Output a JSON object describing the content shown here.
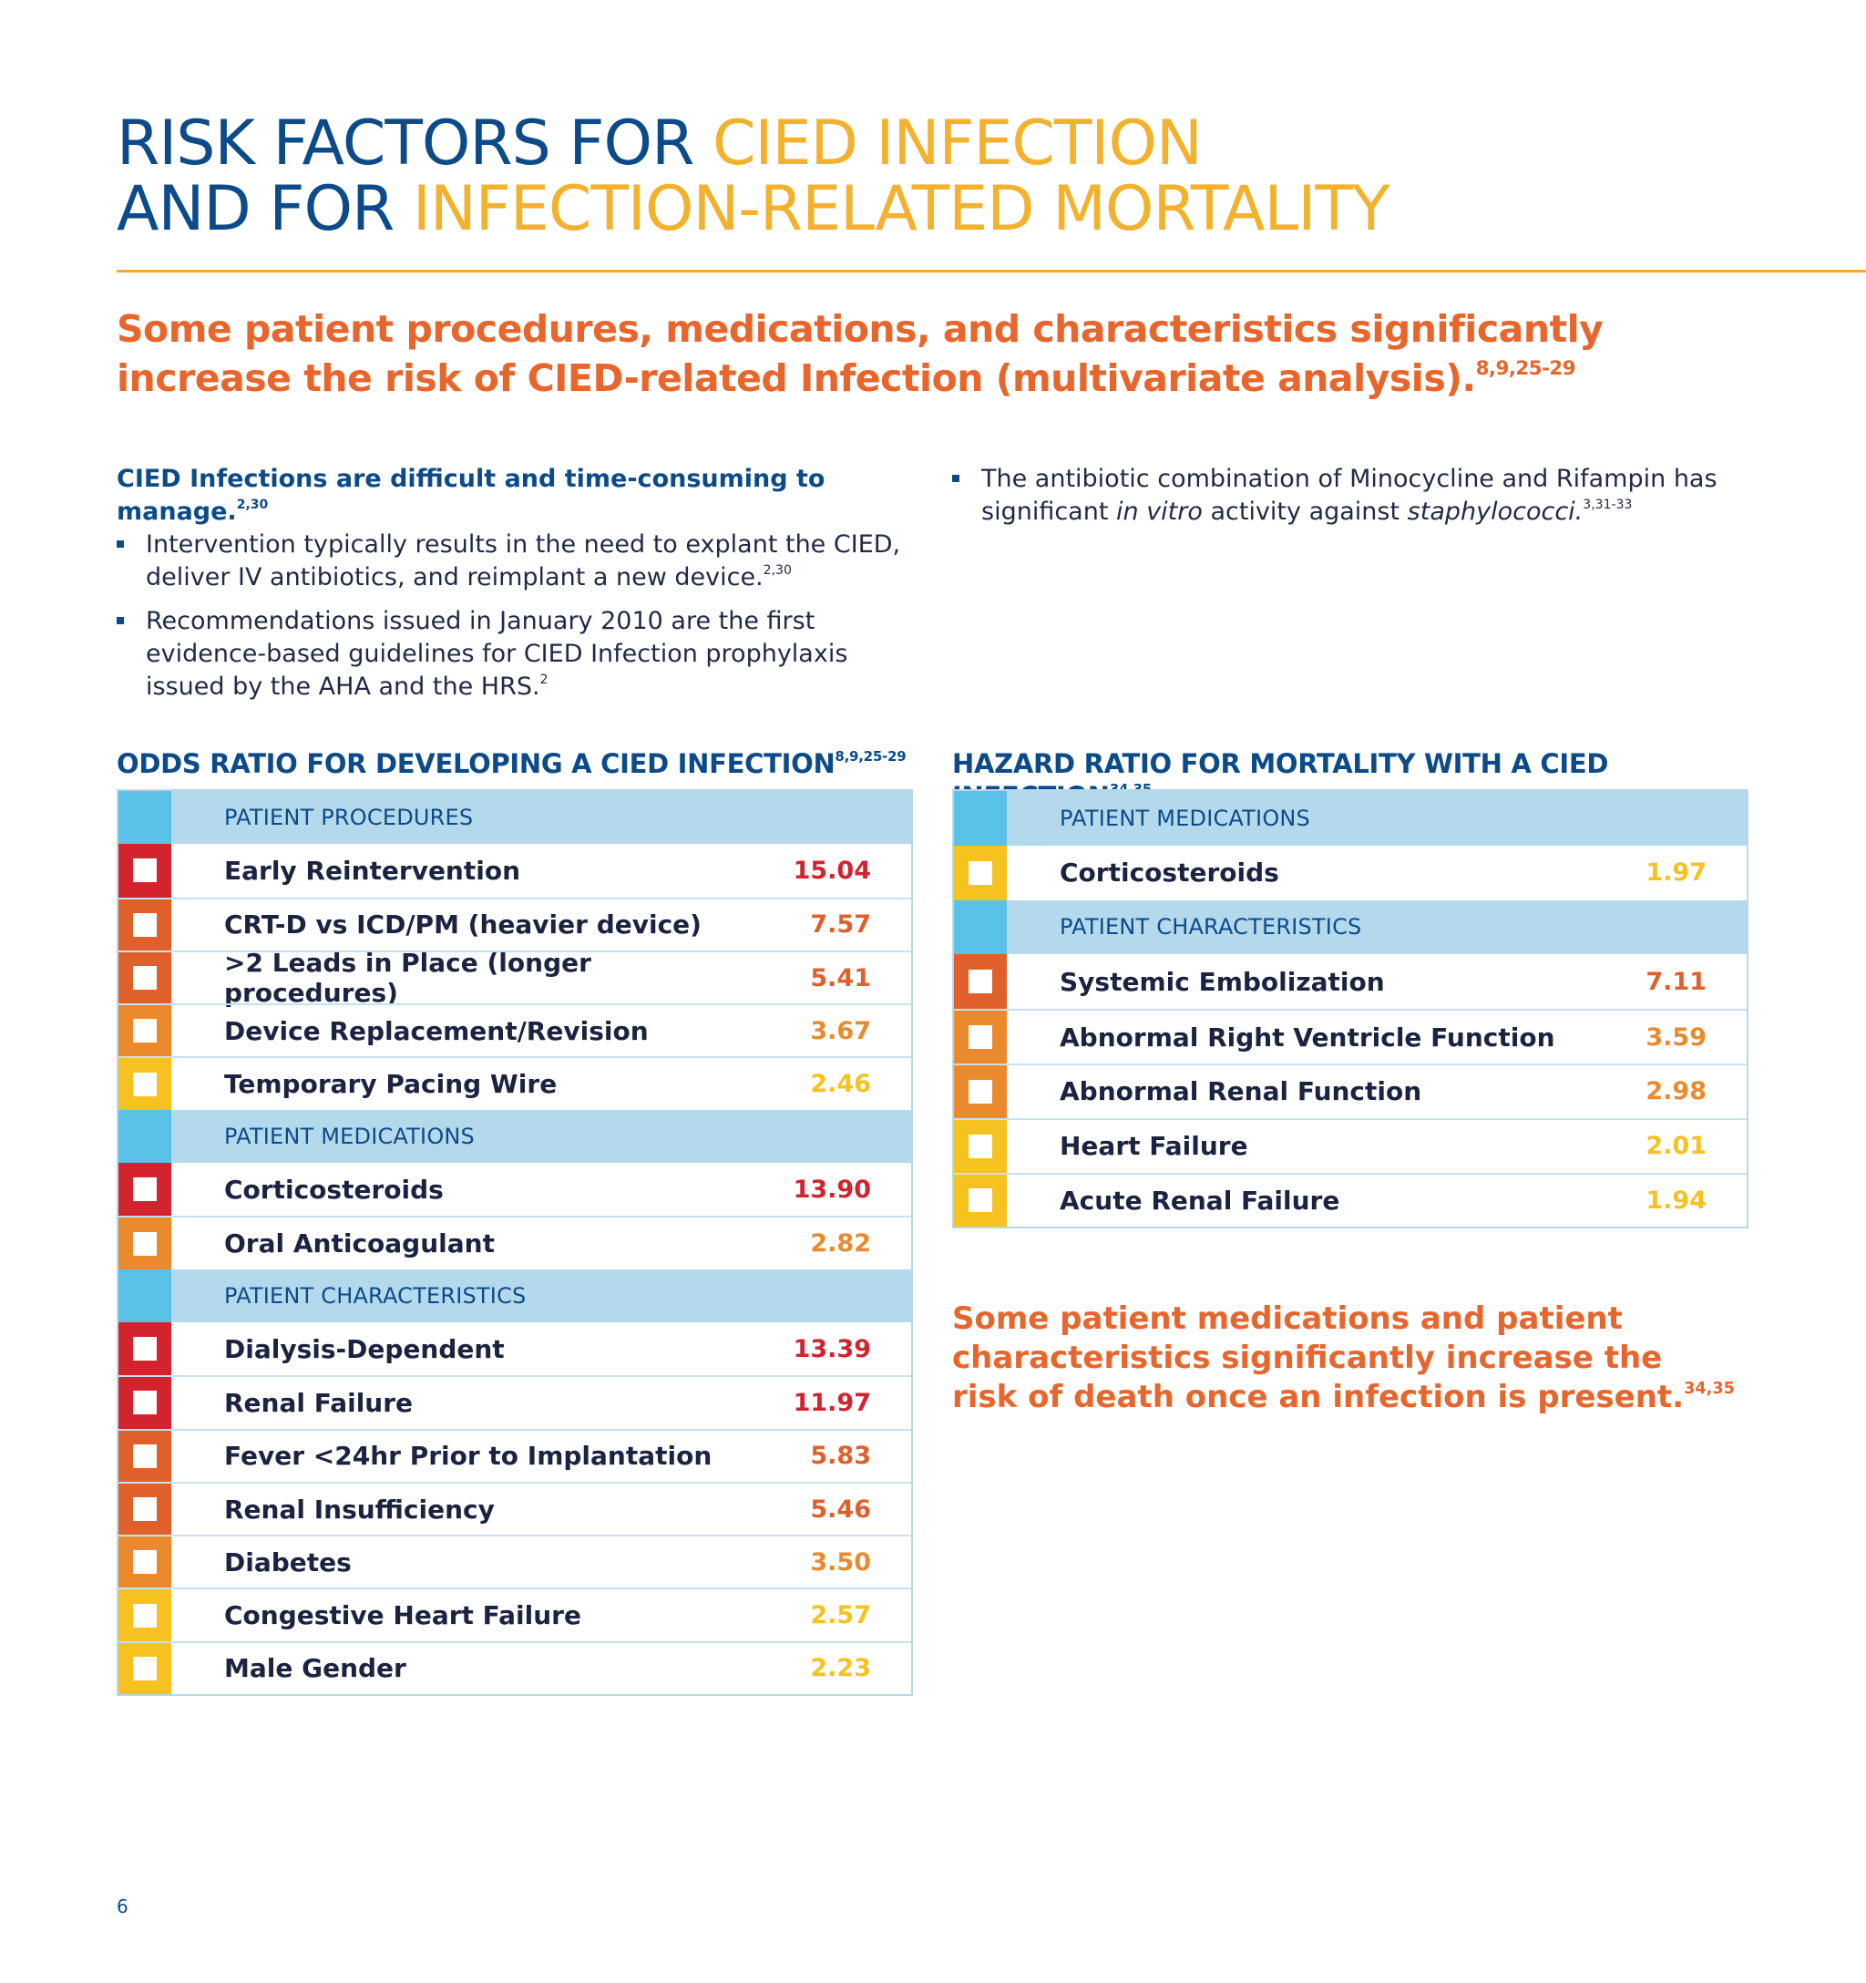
{
  "title": {
    "line1_navy": "RISK FACTORS FOR ",
    "line1_gold": "CIED INFECTION",
    "line2_navy": "AND FOR ",
    "line2_gold": "INFECTION-RELATED MORTALITY"
  },
  "subheading": {
    "text": "Some patient procedures, medications, and characteristics significantly increase the risk of CIED-related Infection (multivariate analysis).",
    "refs": "8,9,25-29"
  },
  "intro_left": {
    "heading": "CIED Infections are difficult and time-consuming to manage.",
    "heading_refs": "2,30",
    "bullet1": "Intervention typically results in the need to explant the CIED, deliver IV antibiotics, and reimplant a new device.",
    "bullet1_refs": "2,30",
    "bullet2": "Recommendations issued in January 2010 are the first evidence-based guidelines for CIED Infection prophylaxis issued by the AHA and the HRS.",
    "bullet2_refs": "2"
  },
  "intro_right": {
    "text_a": "The antibiotic combination of Minocycline and Rifampin has significant ",
    "italic_a": "in vitro",
    "text_b": " activity against ",
    "italic_b": "staphylococci.",
    "refs": "3,31-33"
  },
  "odds_table": {
    "title": "ODDS RATIO FOR DEVELOPING A CIED INFECTION",
    "title_refs": "8,9,25-29",
    "sections": [
      {
        "label": "PATIENT PROCEDURES",
        "rows": [
          {
            "label": "Early Reintervention",
            "value": "15.04",
            "color": "#d3232f"
          },
          {
            "label": "CRT-D vs ICD/PM (heavier device)",
            "value": "7.57",
            "color": "#e0602b"
          },
          {
            "label": ">2 Leads in Place (longer procedures)",
            "value": "5.41",
            "color": "#e0602b"
          },
          {
            "label": "Device Replacement/Revision",
            "value": "3.67",
            "color": "#ea8a2c"
          },
          {
            "label": "Temporary Pacing Wire",
            "value": "2.46",
            "color": "#f5c21f"
          }
        ]
      },
      {
        "label": "PATIENT MEDICATIONS",
        "rows": [
          {
            "label": "Corticosteroids",
            "value": "13.90",
            "color": "#d3232f"
          },
          {
            "label": "Oral Anticoagulant",
            "value": "2.82",
            "color": "#ea8a2c"
          }
        ]
      },
      {
        "label": "PATIENT CHARACTERISTICS",
        "rows": [
          {
            "label": "Dialysis-Dependent",
            "value": "13.39",
            "color": "#d3232f"
          },
          {
            "label": "Renal Failure",
            "value": "11.97",
            "color": "#d3232f"
          },
          {
            "label": "Fever <24hr Prior to Implantation",
            "value": "5.83",
            "color": "#e0602b"
          },
          {
            "label": "Renal Insufficiency",
            "value": "5.46",
            "color": "#e0602b"
          },
          {
            "label": "Diabetes",
            "value": "3.50",
            "color": "#ea8a2c"
          },
          {
            "label": "Congestive Heart Failure",
            "value": "2.57",
            "color": "#f5c21f"
          },
          {
            "label": "Male Gender",
            "value": "2.23",
            "color": "#f5c21f"
          }
        ]
      }
    ]
  },
  "hazard_table": {
    "title": "HAZARD RATIO FOR MORTALITY WITH A CIED INFECTION",
    "title_refs": "34,35",
    "sections": [
      {
        "label": "PATIENT MEDICATIONS",
        "rows": [
          {
            "label": "Corticosteroids",
            "value": "1.97",
            "color": "#f5c21f"
          }
        ]
      },
      {
        "label": "PATIENT CHARACTERISTICS",
        "rows": [
          {
            "label": "Systemic Embolization",
            "value": "7.11",
            "color": "#e0602b"
          },
          {
            "label": "Abnormal Right Ventricle Function",
            "value": "3.59",
            "color": "#ea8a2c"
          },
          {
            "label": "Abnormal Renal Function",
            "value": "2.98",
            "color": "#ea8a2c"
          },
          {
            "label": "Heart Failure",
            "value": "2.01",
            "color": "#f5c21f"
          },
          {
            "label": "Acute Renal Failure",
            "value": "1.94",
            "color": "#f5c21f"
          }
        ]
      }
    ]
  },
  "bottom_note": {
    "text": "Some patient medications and patient characteristics significantly increase the risk of death once an infection is present.",
    "refs": "34,35"
  },
  "page_number": "6",
  "colors": {
    "navy": "#0b4b8a",
    "gold": "#f3b12c",
    "orange_text": "#e8652c",
    "section_bg": "#b5d9ec",
    "section_strip": "#5ac1e7"
  }
}
